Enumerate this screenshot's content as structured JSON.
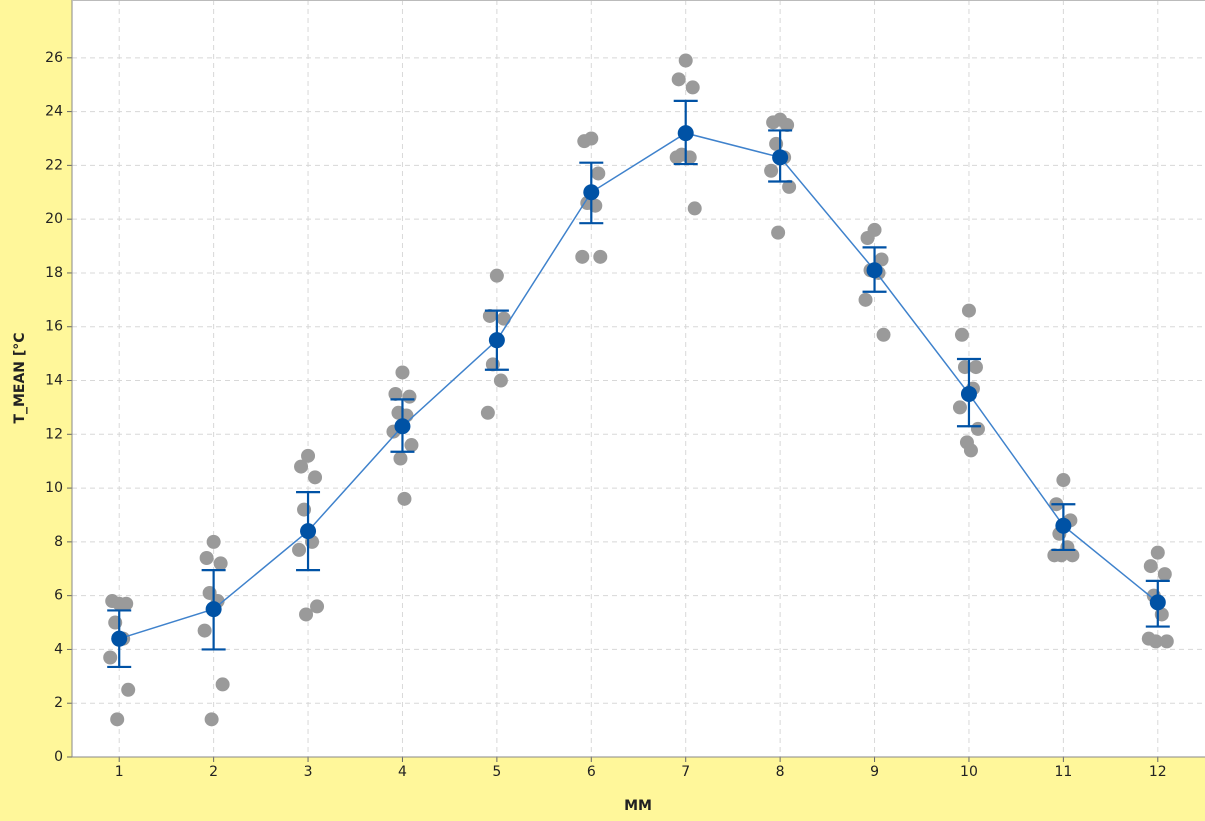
{
  "chart_data": {
    "type": "individual-value",
    "xlabel": "MM",
    "ylabel": "T_MEAN [°C",
    "x": [
      1,
      2,
      3,
      4,
      5,
      6,
      7,
      8,
      9,
      10,
      11,
      12
    ],
    "points": [
      [
        5.7,
        5.8,
        5.7,
        5.0,
        4.4,
        3.7,
        2.5,
        1.4
      ],
      [
        8.0,
        7.4,
        7.2,
        6.1,
        5.8,
        4.7,
        2.7,
        1.4
      ],
      [
        11.2,
        10.8,
        10.4,
        9.2,
        8.0,
        7.7,
        5.6,
        5.3
      ],
      [
        14.3,
        13.5,
        13.4,
        12.8,
        12.7,
        12.1,
        11.6,
        11.1,
        9.6
      ],
      [
        17.9,
        16.4,
        16.3,
        14.6,
        14.0,
        12.8
      ],
      [
        23.0,
        22.9,
        21.7,
        20.6,
        20.5,
        18.6,
        18.6
      ],
      [
        25.9,
        25.2,
        24.9,
        22.4,
        22.3,
        22.3,
        20.4
      ],
      [
        23.7,
        23.6,
        23.5,
        22.8,
        22.3,
        21.8,
        21.2,
        19.5
      ],
      [
        19.6,
        19.3,
        18.5,
        18.1,
        18.0,
        17.0,
        15.7
      ],
      [
        16.6,
        15.7,
        14.5,
        14.5,
        13.7,
        13.0,
        12.2,
        11.7,
        11.4
      ],
      [
        10.3,
        9.4,
        8.8,
        8.3,
        7.8,
        7.5,
        7.5,
        7.5
      ],
      [
        7.6,
        7.1,
        6.8,
        6.0,
        5.3,
        4.4,
        4.3,
        4.3
      ]
    ],
    "means": [
      4.4,
      5.5,
      8.4,
      12.3,
      15.5,
      21.0,
      23.2,
      22.3,
      18.1,
      13.5,
      8.6,
      5.75
    ],
    "ci_low": [
      3.35,
      4.0,
      6.95,
      11.35,
      14.4,
      19.85,
      22.05,
      21.4,
      17.3,
      12.3,
      7.7,
      4.85
    ],
    "ci_high": [
      5.45,
      6.95,
      9.85,
      13.3,
      16.6,
      22.1,
      24.4,
      23.3,
      18.95,
      14.8,
      9.4,
      6.55
    ],
    "point_color": "#9a9a9a",
    "mean_color": "#0052a5",
    "line_color": "#3f82cc",
    "xlim": [
      0.5,
      12.5
    ],
    "ylim": [
      0,
      28.15
    ],
    "xticks": [
      1,
      2,
      3,
      4,
      5,
      6,
      7,
      8,
      9,
      10,
      11,
      12
    ],
    "yticks": [
      0,
      2,
      4,
      6,
      8,
      10,
      12,
      14,
      16,
      18,
      20,
      22,
      24,
      26
    ],
    "grid": true
  }
}
